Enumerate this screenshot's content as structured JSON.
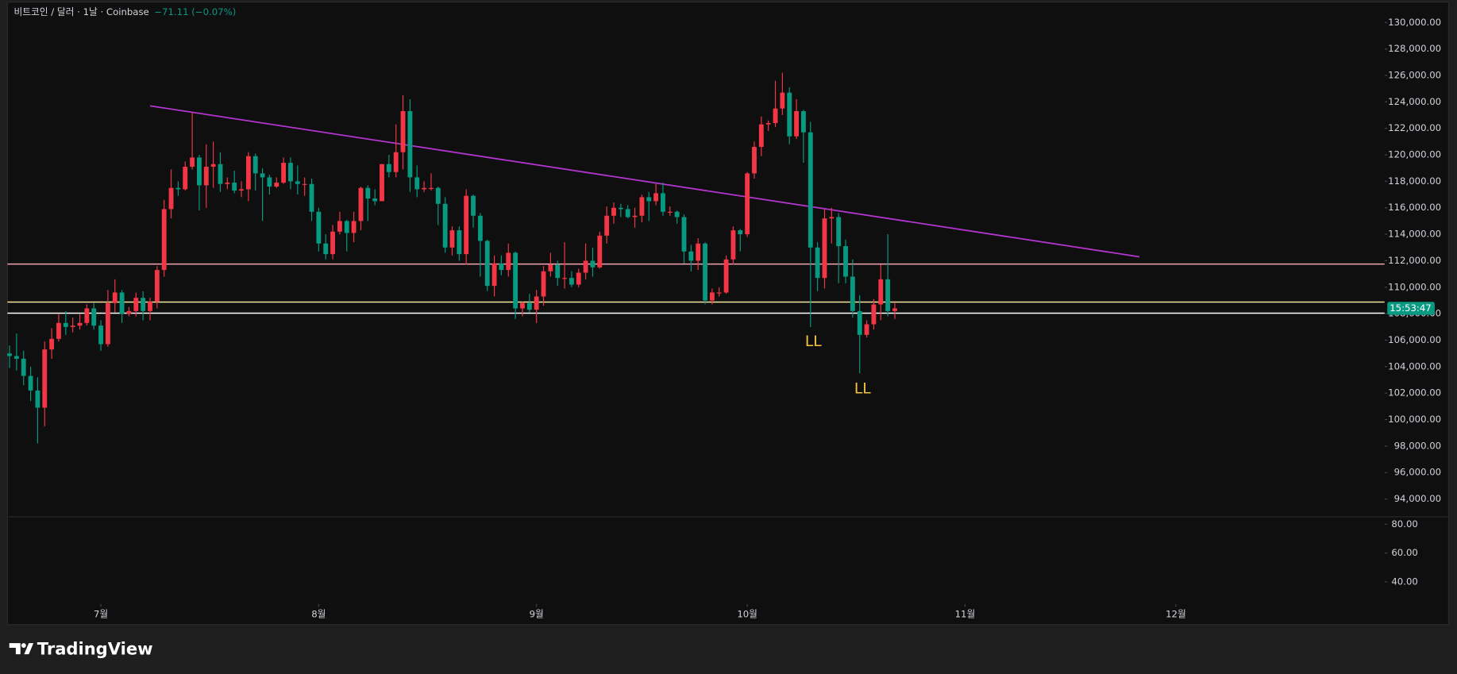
{
  "chart_data": {
    "type": "candlestick",
    "symbol": "비트코인 / 달러 · 1날 · Coinbase",
    "change": "−71.11 (−0.07%)",
    "brand": "TradingView",
    "countdown": "15:53:47",
    "up_color": "#f23645",
    "down_color": "#089981",
    "open": [
      105000,
      104800,
      104600,
      103300,
      102200,
      100900,
      105300,
      106100,
      107300,
      107000,
      107100,
      107300,
      108400,
      107100,
      105700,
      108800,
      109600,
      108000,
      108200,
      109200,
      108200,
      108900,
      111300,
      115900,
      117500,
      117400,
      119100,
      119800,
      117700,
      119100,
      119300,
      117800,
      117900,
      117300,
      117400,
      119900,
      118600,
      118300,
      117600,
      117900,
      119400,
      118000,
      117800,
      117800,
      115700,
      113300,
      112500,
      114200,
      115000,
      114100,
      115000,
      117500,
      116700,
      116500,
      119300,
      118700,
      120200,
      123300,
      118300,
      117400,
      117500,
      117500,
      116300,
      113000,
      114300,
      112500,
      116900,
      115400,
      113500,
      110100,
      111800,
      111300,
      112600,
      108400,
      108800,
      108300,
      109300,
      111200,
      111700,
      110700,
      110700,
      110200,
      111100,
      112000,
      111500,
      113900,
      115400,
      116000,
      115900,
      115300,
      115400,
      116800,
      116500,
      117100,
      115700,
      115700,
      115300,
      112700,
      112000,
      113300,
      109000,
      109600,
      109600,
      112100,
      114300,
      114000,
      118600,
      120600,
      122300,
      122400,
      123500,
      124700,
      121400,
      123300,
      121700,
      113000,
      110700,
      115200,
      115300,
      113100,
      110800,
      108200,
      106400,
      107200,
      108700,
      110600,
      108200
    ],
    "high": [
      105600,
      106500,
      105200,
      104000,
      103200,
      105900,
      106900,
      108000,
      108200,
      107700,
      108000,
      108700,
      108800,
      107500,
      109800,
      110600,
      109800,
      108500,
      109600,
      109700,
      109200,
      111600,
      116600,
      118900,
      118000,
      119500,
      123200,
      120000,
      120800,
      121000,
      120200,
      118300,
      118800,
      118000,
      120200,
      120100,
      119000,
      118500,
      118300,
      119800,
      119800,
      119200,
      118300,
      118200,
      116000,
      114000,
      114700,
      115700,
      115100,
      115700,
      117600,
      117700,
      117400,
      119300,
      120000,
      122300,
      124500,
      124200,
      119200,
      118000,
      118600,
      117600,
      116800,
      114600,
      114600,
      117400,
      117000,
      115600,
      113600,
      112400,
      112400,
      113300,
      112700,
      108900,
      109500,
      109800,
      111600,
      112600,
      112000,
      113400,
      111200,
      111400,
      113300,
      113000,
      114200,
      116100,
      116400,
      116300,
      116200,
      116000,
      117000,
      117200,
      117800,
      117900,
      116100,
      115800,
      115500,
      113200,
      113700,
      113400,
      109900,
      110000,
      112400,
      114600,
      114400,
      118700,
      121000,
      122900,
      122600,
      125600,
      126200,
      125100,
      124200,
      123400,
      122500,
      113400,
      115900,
      116000,
      115600,
      113600,
      112100,
      109400,
      107500,
      109100,
      111700,
      114000,
      108800
    ],
    "low": [
      103900,
      103700,
      102600,
      101400,
      98200,
      99500,
      104600,
      105900,
      106400,
      106600,
      106800,
      107100,
      106800,
      105200,
      105500,
      108100,
      107300,
      107800,
      107800,
      107500,
      107500,
      108400,
      110800,
      115200,
      116900,
      117300,
      118900,
      115800,
      116000,
      117500,
      117200,
      117400,
      117100,
      116800,
      116500,
      117300,
      115000,
      117000,
      117500,
      117800,
      117400,
      117000,
      116900,
      115000,
      112700,
      112100,
      112100,
      114000,
      112700,
      113400,
      114300,
      115000,
      116200,
      116500,
      118300,
      118300,
      118900,
      117200,
      116800,
      117200,
      117300,
      114700,
      112600,
      112400,
      112000,
      111700,
      114500,
      110800,
      109700,
      109300,
      110900,
      110800,
      107600,
      107800,
      108100,
      107300,
      108600,
      110800,
      110100,
      109900,
      110000,
      110000,
      110600,
      110800,
      111400,
      113300,
      114800,
      115300,
      115200,
      114500,
      114900,
      115000,
      116200,
      115400,
      115400,
      114800,
      111800,
      111200,
      111300,
      108700,
      108700,
      109300,
      109500,
      111700,
      112700,
      113800,
      118200,
      119900,
      121800,
      122100,
      123000,
      120800,
      121200,
      119400,
      107000,
      109700,
      109900,
      113300,
      110300,
      110300,
      107700,
      103500,
      106200,
      106800,
      107500,
      107800,
      107600
    ],
    "close": [
      104800,
      104600,
      103300,
      102200,
      100900,
      105300,
      106100,
      107300,
      107000,
      107100,
      107300,
      108400,
      107100,
      105700,
      108800,
      109600,
      108000,
      108200,
      109200,
      108200,
      108900,
      111300,
      115900,
      117500,
      117400,
      119100,
      119800,
      117700,
      119100,
      119300,
      117800,
      117900,
      117300,
      117400,
      119900,
      118600,
      118300,
      117600,
      117900,
      119400,
      118000,
      117800,
      117800,
      115700,
      113300,
      112500,
      114200,
      115000,
      114100,
      115000,
      117500,
      116700,
      116500,
      119300,
      118700,
      120200,
      123300,
      118300,
      117400,
      117500,
      117500,
      116300,
      113000,
      114300,
      112500,
      116900,
      115400,
      113500,
      110100,
      111800,
      111300,
      112600,
      108400,
      108800,
      108300,
      109300,
      111200,
      111700,
      110700,
      110700,
      110200,
      111100,
      112000,
      111500,
      113900,
      115400,
      116000,
      115900,
      115300,
      115400,
      116800,
      116500,
      117100,
      115700,
      115700,
      115300,
      112700,
      112000,
      113300,
      109000,
      109600,
      109600,
      112100,
      114300,
      114000,
      118600,
      120600,
      122300,
      122400,
      123500,
      124700,
      121400,
      123300,
      121700,
      113000,
      110700,
      115200,
      115300,
      113100,
      110800,
      108200,
      106400,
      107200,
      108700,
      110600,
      108200,
      108400
    ],
    "xlim": [
      -0.3,
      195.7
    ],
    "xticks": [
      {
        "value": 13,
        "label": "7월"
      },
      {
        "value": 44,
        "label": "8월"
      },
      {
        "value": 75,
        "label": "9월"
      },
      {
        "value": 105,
        "label": "10월"
      },
      {
        "value": 136,
        "label": "11월"
      },
      {
        "value": 166,
        "label": "12월"
      }
    ],
    "ylim": [
      92660,
      131540
    ],
    "yticks": [
      {
        "value": 94000,
        "label": "94,000.00"
      },
      {
        "value": 96000,
        "label": "96,000.00"
      },
      {
        "value": 98000,
        "label": "98,000.00"
      },
      {
        "value": 100000,
        "label": "100,000.00"
      },
      {
        "value": 102000,
        "label": "102,000.00"
      },
      {
        "value": 104000,
        "label": "104,000.00"
      },
      {
        "value": 106000,
        "label": "106,000.00"
      },
      {
        "value": 108000,
        "label": "108,000.00"
      },
      {
        "value": 110000,
        "label": "110,000.00"
      },
      {
        "value": 112000,
        "label": "112,000.00"
      },
      {
        "value": 114000,
        "label": "114,000.00"
      },
      {
        "value": 116000,
        "label": "116,000.00"
      },
      {
        "value": 118000,
        "label": "118,000.00"
      },
      {
        "value": 120000,
        "label": "120,000.00"
      },
      {
        "value": 122000,
        "label": "122,000.00"
      },
      {
        "value": 124000,
        "label": "124,000.00"
      },
      {
        "value": 126000,
        "label": "126,000.00"
      },
      {
        "value": 128000,
        "label": "128,000.00"
      },
      {
        "value": 130000,
        "label": "130,000.00"
      }
    ],
    "hlines": [
      {
        "value": 111750,
        "color": "#f4a6b4"
      },
      {
        "value": 108880,
        "color": "#f5e6a0"
      },
      {
        "value": 108040,
        "color": "#ffffff"
      }
    ],
    "trendline": {
      "x": [
        20,
        160.8
      ],
      "y": [
        123700,
        112300
      ],
      "color": "#b535d0"
    },
    "annotations": [
      {
        "text": "LL",
        "x": 114.4,
        "y": 105870,
        "color": "#f5c542"
      },
      {
        "text": "LL",
        "x": 121.4,
        "y": 102310,
        "color": "#f5c542"
      }
    ],
    "indicator_pane": {
      "ylim": [
        25.8,
        85.2
      ],
      "yticks": [
        {
          "value": 40,
          "label": "40.00"
        },
        {
          "value": 60,
          "label": "60.00"
        },
        {
          "value": 80,
          "label": "80.00"
        }
      ]
    }
  }
}
